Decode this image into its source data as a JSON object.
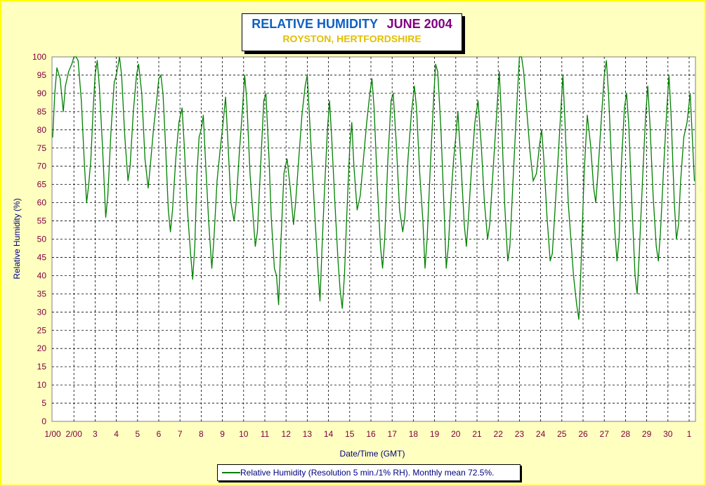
{
  "chart_data": {
    "type": "line",
    "title": "RELATIVE HUMIDITY",
    "title_date": "JUNE 2004",
    "subtitle": "ROYSTON, HERTFORDSHIRE",
    "xlabel": "Date/Time (GMT)",
    "ylabel": "Relative Humidity (%)",
    "ylim": [
      0,
      100
    ],
    "yticks": [
      0,
      5,
      10,
      15,
      20,
      25,
      30,
      35,
      40,
      45,
      50,
      55,
      60,
      65,
      70,
      75,
      80,
      85,
      90,
      95,
      100
    ],
    "xlim": [
      1,
      31.1
    ],
    "xticks": [
      {
        "x": 1,
        "label": "1/00"
      },
      {
        "x": 2,
        "label": "2/00"
      },
      {
        "x": 3,
        "label": "3"
      },
      {
        "x": 4,
        "label": "4"
      },
      {
        "x": 5,
        "label": "5"
      },
      {
        "x": 6,
        "label": "6"
      },
      {
        "x": 7,
        "label": "7"
      },
      {
        "x": 8,
        "label": "8"
      },
      {
        "x": 9,
        "label": "9"
      },
      {
        "x": 10,
        "label": "10"
      },
      {
        "x": 11,
        "label": "11"
      },
      {
        "x": 12,
        "label": "12"
      },
      {
        "x": 13,
        "label": "13"
      },
      {
        "x": 14,
        "label": "14"
      },
      {
        "x": 15,
        "label": "15"
      },
      {
        "x": 16,
        "label": "16"
      },
      {
        "x": 17,
        "label": "17"
      },
      {
        "x": 18,
        "label": "18"
      },
      {
        "x": 19,
        "label": "19"
      },
      {
        "x": 20,
        "label": "20"
      },
      {
        "x": 21,
        "label": "21"
      },
      {
        "x": 22,
        "label": "22"
      },
      {
        "x": 23,
        "label": "23"
      },
      {
        "x": 24,
        "label": "24"
      },
      {
        "x": 25,
        "label": "25"
      },
      {
        "x": 26,
        "label": "26"
      },
      {
        "x": 27,
        "label": "27"
      },
      {
        "x": 28,
        "label": "28"
      },
      {
        "x": 29,
        "label": "29"
      },
      {
        "x": 30,
        "label": "30"
      },
      {
        "x": 31,
        "label": "1"
      }
    ],
    "grid": true,
    "legend_position": "bottom-center",
    "series": [
      {
        "name": "Relative Humidity (Resolution 5 min./1% RH). Monthly mean 72.5%.",
        "color": "#008000",
        "points": [
          [
            1.0,
            78
          ],
          [
            1.1,
            90
          ],
          [
            1.2,
            97
          ],
          [
            1.35,
            94
          ],
          [
            1.5,
            85
          ],
          [
            1.6,
            92
          ],
          [
            1.75,
            96
          ],
          [
            1.9,
            98
          ],
          [
            2.0,
            100
          ],
          [
            2.1,
            100
          ],
          [
            2.2,
            99
          ],
          [
            2.35,
            88
          ],
          [
            2.5,
            70
          ],
          [
            2.6,
            60
          ],
          [
            2.7,
            65
          ],
          [
            2.8,
            72
          ],
          [
            2.9,
            85
          ],
          [
            3.0,
            95
          ],
          [
            3.1,
            99
          ],
          [
            3.2,
            92
          ],
          [
            3.35,
            75
          ],
          [
            3.5,
            56
          ],
          [
            3.6,
            62
          ],
          [
            3.75,
            80
          ],
          [
            3.9,
            93
          ],
          [
            4.0,
            95
          ],
          [
            4.15,
            100
          ],
          [
            4.25,
            95
          ],
          [
            4.4,
            78
          ],
          [
            4.55,
            66
          ],
          [
            4.65,
            70
          ],
          [
            4.8,
            85
          ],
          [
            4.95,
            95
          ],
          [
            5.05,
            98
          ],
          [
            5.2,
            90
          ],
          [
            5.35,
            72
          ],
          [
            5.5,
            64
          ],
          [
            5.6,
            70
          ],
          [
            5.75,
            80
          ],
          [
            5.9,
            88
          ],
          [
            6.0,
            94
          ],
          [
            6.1,
            95
          ],
          [
            6.2,
            90
          ],
          [
            6.3,
            78
          ],
          [
            6.45,
            58
          ],
          [
            6.55,
            52
          ],
          [
            6.65,
            58
          ],
          [
            6.8,
            72
          ],
          [
            6.95,
            82
          ],
          [
            7.1,
            86
          ],
          [
            7.2,
            76
          ],
          [
            7.35,
            58
          ],
          [
            7.5,
            46
          ],
          [
            7.6,
            39
          ],
          [
            7.7,
            48
          ],
          [
            7.8,
            68
          ],
          [
            7.9,
            78
          ],
          [
            8.0,
            80
          ],
          [
            8.1,
            84
          ],
          [
            8.2,
            72
          ],
          [
            8.35,
            55
          ],
          [
            8.5,
            42
          ],
          [
            8.6,
            50
          ],
          [
            8.75,
            66
          ],
          [
            8.9,
            75
          ],
          [
            9.0,
            80
          ],
          [
            9.15,
            89
          ],
          [
            9.25,
            78
          ],
          [
            9.4,
            60
          ],
          [
            9.55,
            55
          ],
          [
            9.65,
            60
          ],
          [
            9.8,
            74
          ],
          [
            9.95,
            86
          ],
          [
            10.05,
            95
          ],
          [
            10.15,
            88
          ],
          [
            10.3,
            68
          ],
          [
            10.45,
            56
          ],
          [
            10.55,
            48
          ],
          [
            10.65,
            52
          ],
          [
            10.8,
            70
          ],
          [
            10.95,
            88
          ],
          [
            11.05,
            90
          ],
          [
            11.2,
            72
          ],
          [
            11.3,
            56
          ],
          [
            11.45,
            42
          ],
          [
            11.55,
            40
          ],
          [
            11.65,
            32
          ],
          [
            11.75,
            48
          ],
          [
            11.9,
            68
          ],
          [
            12.05,
            72
          ],
          [
            12.2,
            64
          ],
          [
            12.35,
            54
          ],
          [
            12.45,
            60
          ],
          [
            12.6,
            72
          ],
          [
            12.75,
            84
          ],
          [
            12.9,
            92
          ],
          [
            13.0,
            95
          ],
          [
            13.1,
            84
          ],
          [
            13.25,
            68
          ],
          [
            13.4,
            52
          ],
          [
            13.5,
            42
          ],
          [
            13.6,
            33
          ],
          [
            13.7,
            48
          ],
          [
            13.8,
            62
          ],
          [
            13.95,
            80
          ],
          [
            14.05,
            88
          ],
          [
            14.15,
            78
          ],
          [
            14.3,
            60
          ],
          [
            14.45,
            44
          ],
          [
            14.55,
            36
          ],
          [
            14.65,
            31
          ],
          [
            14.75,
            40
          ],
          [
            14.85,
            55
          ],
          [
            15.0,
            75
          ],
          [
            15.1,
            82
          ],
          [
            15.2,
            70
          ],
          [
            15.35,
            58
          ],
          [
            15.5,
            62
          ],
          [
            15.65,
            72
          ],
          [
            15.8,
            82
          ],
          [
            15.95,
            90
          ],
          [
            16.05,
            94
          ],
          [
            16.15,
            86
          ],
          [
            16.3,
            65
          ],
          [
            16.45,
            48
          ],
          [
            16.55,
            42
          ],
          [
            16.65,
            50
          ],
          [
            16.8,
            72
          ],
          [
            16.95,
            88
          ],
          [
            17.05,
            90
          ],
          [
            17.2,
            76
          ],
          [
            17.35,
            58
          ],
          [
            17.5,
            52
          ],
          [
            17.6,
            56
          ],
          [
            17.75,
            72
          ],
          [
            17.9,
            84
          ],
          [
            18.05,
            92
          ],
          [
            18.15,
            86
          ],
          [
            18.3,
            68
          ],
          [
            18.45,
            55
          ],
          [
            18.55,
            42
          ],
          [
            18.65,
            50
          ],
          [
            18.8,
            70
          ],
          [
            18.95,
            88
          ],
          [
            19.05,
            98
          ],
          [
            19.15,
            96
          ],
          [
            19.3,
            80
          ],
          [
            19.45,
            58
          ],
          [
            19.55,
            42
          ],
          [
            19.65,
            48
          ],
          [
            19.8,
            64
          ],
          [
            19.9,
            72
          ],
          [
            20.0,
            78
          ],
          [
            20.1,
            85
          ],
          [
            20.25,
            70
          ],
          [
            20.4,
            54
          ],
          [
            20.5,
            48
          ],
          [
            20.6,
            56
          ],
          [
            20.75,
            70
          ],
          [
            20.9,
            82
          ],
          [
            21.05,
            88
          ],
          [
            21.2,
            76
          ],
          [
            21.35,
            60
          ],
          [
            21.5,
            50
          ],
          [
            21.6,
            54
          ],
          [
            21.75,
            68
          ],
          [
            21.9,
            82
          ],
          [
            22.05,
            96
          ],
          [
            22.15,
            84
          ],
          [
            22.3,
            60
          ],
          [
            22.45,
            44
          ],
          [
            22.55,
            48
          ],
          [
            22.7,
            66
          ],
          [
            22.85,
            84
          ],
          [
            23.0,
            100
          ],
          [
            23.1,
            100
          ],
          [
            23.2,
            96
          ],
          [
            23.35,
            85
          ],
          [
            23.5,
            74
          ],
          [
            23.65,
            66
          ],
          [
            23.8,
            68
          ],
          [
            23.95,
            76
          ],
          [
            24.05,
            80
          ],
          [
            24.15,
            72
          ],
          [
            24.3,
            56
          ],
          [
            24.45,
            44
          ],
          [
            24.55,
            46
          ],
          [
            24.7,
            60
          ],
          [
            24.85,
            75
          ],
          [
            25.05,
            95
          ],
          [
            25.15,
            82
          ],
          [
            25.3,
            60
          ],
          [
            25.45,
            48
          ],
          [
            25.55,
            40
          ],
          [
            25.7,
            32
          ],
          [
            25.8,
            28
          ],
          [
            25.9,
            42
          ],
          [
            26.05,
            68
          ],
          [
            26.2,
            84
          ],
          [
            26.35,
            76
          ],
          [
            26.5,
            64
          ],
          [
            26.6,
            60
          ],
          [
            26.7,
            68
          ],
          [
            26.85,
            82
          ],
          [
            27.0,
            95
          ],
          [
            27.1,
            99
          ],
          [
            27.2,
            90
          ],
          [
            27.35,
            70
          ],
          [
            27.5,
            52
          ],
          [
            27.6,
            44
          ],
          [
            27.7,
            50
          ],
          [
            27.8,
            70
          ],
          [
            27.95,
            86
          ],
          [
            28.05,
            90
          ],
          [
            28.15,
            82
          ],
          [
            28.3,
            60
          ],
          [
            28.45,
            40
          ],
          [
            28.55,
            35
          ],
          [
            28.65,
            46
          ],
          [
            28.8,
            66
          ],
          [
            28.95,
            84
          ],
          [
            29.05,
            92
          ],
          [
            29.15,
            82
          ],
          [
            29.3,
            62
          ],
          [
            29.45,
            48
          ],
          [
            29.55,
            44
          ],
          [
            29.65,
            52
          ],
          [
            29.8,
            70
          ],
          [
            29.95,
            86
          ],
          [
            30.05,
            95
          ],
          [
            30.15,
            84
          ],
          [
            30.3,
            60
          ],
          [
            30.4,
            50
          ],
          [
            30.5,
            54
          ],
          [
            30.6,
            66
          ],
          [
            30.75,
            78
          ],
          [
            30.9,
            82
          ],
          [
            31.05,
            90
          ],
          [
            31.15,
            78
          ],
          [
            31.25,
            66
          ]
        ]
      }
    ]
  }
}
